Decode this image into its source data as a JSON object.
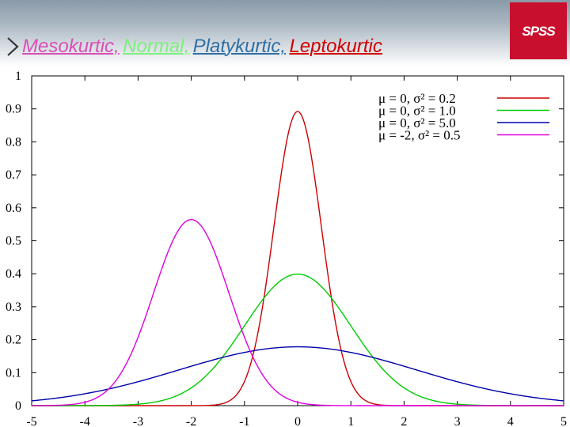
{
  "slide": {
    "title_parts": [
      {
        "text": "Mesokurtic,",
        "color": "#d94fb5"
      },
      {
        "text": "Normal,",
        "color": "#7cf07c"
      },
      {
        "text": "Platykurtic,",
        "color": "#2f6fa3"
      },
      {
        "text": "Leptokurtic",
        "color": "#d10000"
      }
    ],
    "logo_text": "SPSS",
    "bullet_icon": "chevron-right-icon"
  },
  "chart_data": {
    "type": "line",
    "title": "",
    "xlabel": "",
    "ylabel": "",
    "xlim": [
      -5,
      5
    ],
    "ylim": [
      0,
      1
    ],
    "x_ticks": [
      "-5",
      "-4",
      "-3",
      "-2",
      "-1",
      "0",
      "1",
      "2",
      "3",
      "4",
      "5"
    ],
    "y_ticks": [
      "0",
      "0.1",
      "0.2",
      "0.3",
      "0.4",
      "0.5",
      "0.6",
      "0.7",
      "0.8",
      "0.9",
      "1"
    ],
    "grid": false,
    "legend_position": "top-right",
    "series": [
      {
        "name": "μ = 0, σ² = 0.2",
        "mu": 0,
        "variance": 0.2,
        "color": "#cc0000",
        "x": [
          -1.5,
          -1.0,
          -0.75,
          -0.5,
          -0.25,
          0,
          0.25,
          0.5,
          0.75,
          1.0,
          1.5
        ],
        "y": [
          0.0033,
          0.073,
          0.218,
          0.478,
          0.761,
          0.892,
          0.761,
          0.478,
          0.218,
          0.073,
          0.0033
        ]
      },
      {
        "name": "μ = 0, σ² = 1.0",
        "mu": 0,
        "variance": 1.0,
        "color": "#00cc00",
        "x": [
          -3,
          -2,
          -1.5,
          -1,
          -0.5,
          0,
          0.5,
          1,
          1.5,
          2,
          3
        ],
        "y": [
          0.0044,
          0.054,
          0.13,
          0.242,
          0.352,
          0.399,
          0.352,
          0.242,
          0.13,
          0.054,
          0.0044
        ]
      },
      {
        "name": "μ = 0, σ² = 5.0",
        "mu": 0,
        "variance": 5.0,
        "color": "#0000aa",
        "x": [
          -5,
          -4,
          -3,
          -2,
          -1,
          0,
          1,
          2,
          3,
          4,
          5
        ],
        "y": [
          0.015,
          0.036,
          0.072,
          0.119,
          0.161,
          0.178,
          0.161,
          0.119,
          0.072,
          0.036,
          0.015
        ]
      },
      {
        "name": "μ = -2, σ² = 0.5",
        "mu": -2,
        "variance": 0.5,
        "color": "#dd00dd",
        "x": [
          -4,
          -3.5,
          -3,
          -2.5,
          -2,
          -1.5,
          -1,
          -0.5,
          0
        ],
        "y": [
          0.0103,
          0.059,
          0.208,
          0.439,
          0.564,
          0.439,
          0.208,
          0.059,
          0.0103
        ]
      }
    ]
  }
}
